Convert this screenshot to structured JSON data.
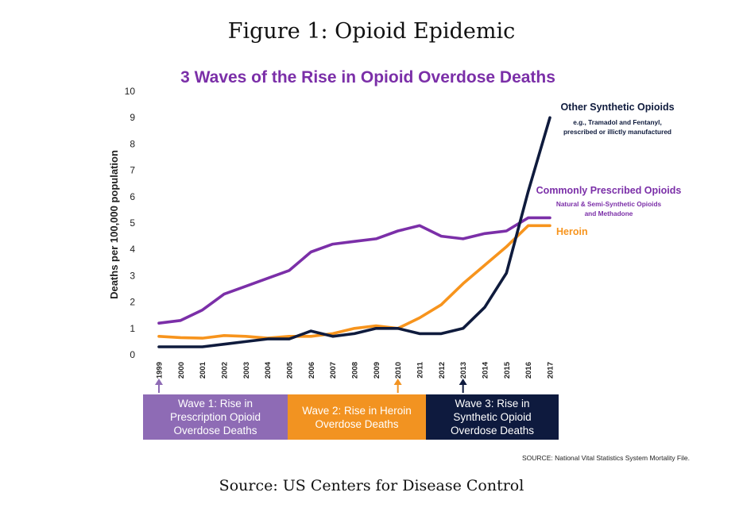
{
  "figure": {
    "caption": "Figure 1: Opioid Epidemic",
    "source_note": "Source: US Centers for Disease Control"
  },
  "colors": {
    "purple": "#7B2FA8",
    "orange": "#F7941D",
    "navy": "#0F1B3D",
    "wave1": "#8E6BB5",
    "wave2": "#F29321",
    "wave3": "#0E1A3E",
    "title": "#7B2FA8"
  },
  "chart_data": {
    "type": "line",
    "title": "3 Waves of the Rise in Opioid Overdose Deaths",
    "ylabel": "Deaths per 100,000 population",
    "xlabel": "",
    "ylim": [
      0,
      10
    ],
    "yticks": [
      "0",
      "1",
      "2",
      "3",
      "4",
      "5",
      "6",
      "7",
      "8",
      "9",
      "10"
    ],
    "x": [
      "1999",
      "2000",
      "2001",
      "2002",
      "2003",
      "2004",
      "2005",
      "2006",
      "2007",
      "2008",
      "2009",
      "2010",
      "2011",
      "2012",
      "2013",
      "2014",
      "2015",
      "2016",
      "2017"
    ],
    "grid": false,
    "series": [
      {
        "name": "Other Synthetic Opioids",
        "subtitle": "e.g., Tramadol and Fentanyl, prescribed or illictly manufactured",
        "color": "#0F1B3D",
        "values": [
          0.3,
          0.3,
          0.3,
          0.4,
          0.5,
          0.6,
          0.6,
          0.9,
          0.7,
          0.8,
          1.0,
          1.0,
          0.8,
          0.8,
          1.0,
          1.8,
          3.1,
          6.2,
          9.0
        ]
      },
      {
        "name": "Commonly Prescribed Opioids",
        "subtitle": "Natural & Semi-Synthetic Opioids and Methadone",
        "color": "#7B2FA8",
        "values": [
          1.2,
          1.3,
          1.7,
          2.3,
          2.6,
          2.9,
          3.2,
          3.9,
          4.2,
          4.3,
          4.4,
          4.7,
          4.9,
          4.5,
          4.4,
          4.6,
          4.7,
          5.2,
          5.2
        ]
      },
      {
        "name": "Heroin",
        "subtitle": "",
        "color": "#F7941D",
        "values": [
          0.7,
          0.65,
          0.63,
          0.73,
          0.7,
          0.63,
          0.7,
          0.7,
          0.8,
          1.0,
          1.1,
          1.0,
          1.4,
          1.9,
          2.7,
          3.4,
          4.1,
          4.9,
          4.9
        ]
      }
    ],
    "waves": [
      {
        "label": "Wave 1: Rise in Prescription Opioid Overdose Deaths",
        "start_year": "1999",
        "color": "#8E6BB5"
      },
      {
        "label": "Wave 2: Rise in Heroin Overdose Deaths",
        "start_year": "2010",
        "color": "#F29321"
      },
      {
        "label": "Wave 3: Rise in Synthetic Opioid Overdose Deaths",
        "start_year": "2013",
        "color": "#0E1A3E"
      }
    ],
    "source": "SOURCE: National Vital Statistics System Mortality File."
  }
}
